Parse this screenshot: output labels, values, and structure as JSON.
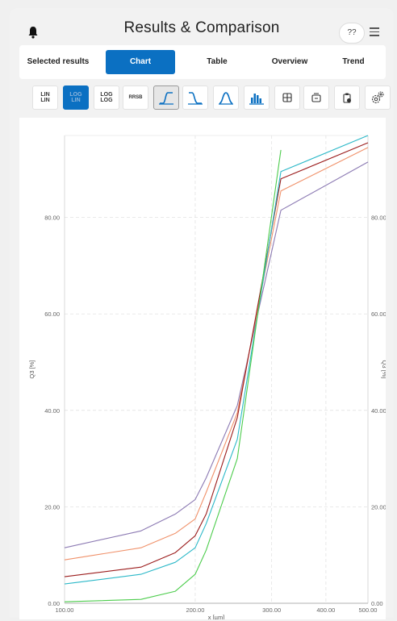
{
  "header": {
    "title": "Results & Comparison",
    "help_label": "??",
    "icons": {
      "left": "bell-icon",
      "right": "menu-icon"
    }
  },
  "tabs": [
    {
      "label": "Selected results",
      "active": false
    },
    {
      "label": "Chart",
      "active": true
    },
    {
      "label": "Table",
      "active": false
    },
    {
      "label": "Overview",
      "active": false
    },
    {
      "label": "Trend",
      "active": false
    }
  ],
  "toolbar": {
    "lin_lin": [
      "LIN",
      "LIN"
    ],
    "log_lin": [
      "LOG",
      "LIN"
    ],
    "log_log": [
      "LOG",
      "LOG"
    ],
    "rrsb": "RRSB",
    "icons": [
      "cumulative-curve-icon",
      "inverse-cumulative-icon",
      "density-curve-icon",
      "histogram-icon",
      "grid-layout-icon",
      "align-icon",
      "clipboard-icon",
      "settings-icon"
    ]
  },
  "colors": {
    "accent": "#0b70c2",
    "series": [
      "#8c7ab3",
      "#f0916a",
      "#9b1c1c",
      "#2bb8c8",
      "#4ccc4c"
    ]
  },
  "chart_data": {
    "type": "line",
    "xlabel": "x [µm]",
    "ylabel": "Q3 [%]",
    "ylabel_right": "Q3 [%]",
    "x_scale": "log",
    "xlim": [
      100,
      500
    ],
    "ylim": [
      0,
      97
    ],
    "x_ticks": [
      "100.00",
      "200.00",
      "300.00",
      "400.00",
      "500.00"
    ],
    "x_tick_values": [
      100,
      200,
      300,
      400,
      500
    ],
    "y_ticks": [
      "0.00",
      "20.00",
      "40.00",
      "60.00",
      "80.00"
    ],
    "y_tick_values": [
      0,
      20,
      40,
      60,
      80
    ],
    "grid": true,
    "series": [
      {
        "color": "#8c7ab3",
        "x": [
          100,
          150,
          180,
          200,
          212,
          250,
          315,
          500
        ],
        "y": [
          11.5,
          15,
          18.5,
          21.5,
          26,
          41,
          81.5,
          91.5
        ]
      },
      {
        "color": "#f0916a",
        "x": [
          100,
          150,
          180,
          200,
          212,
          250,
          315,
          500
        ],
        "y": [
          9,
          11.5,
          14.5,
          17.5,
          23,
          39.5,
          85.5,
          94.5
        ]
      },
      {
        "color": "#9b1c1c",
        "x": [
          100,
          150,
          180,
          200,
          212,
          250,
          315,
          500
        ],
        "y": [
          5.5,
          7.5,
          10.5,
          14,
          18.5,
          38.5,
          88,
          95.5
        ]
      },
      {
        "color": "#2bb8c8",
        "x": [
          100,
          150,
          180,
          200,
          212,
          250,
          315,
          500
        ],
        "y": [
          4,
          6,
          8.5,
          11.5,
          16.5,
          34,
          89.5,
          97
        ]
      },
      {
        "color": "#4ccc4c",
        "x": [
          100,
          150,
          180,
          200,
          212,
          250,
          315
        ],
        "y": [
          0.3,
          0.8,
          2.5,
          6,
          11,
          30,
          94
        ]
      }
    ]
  }
}
